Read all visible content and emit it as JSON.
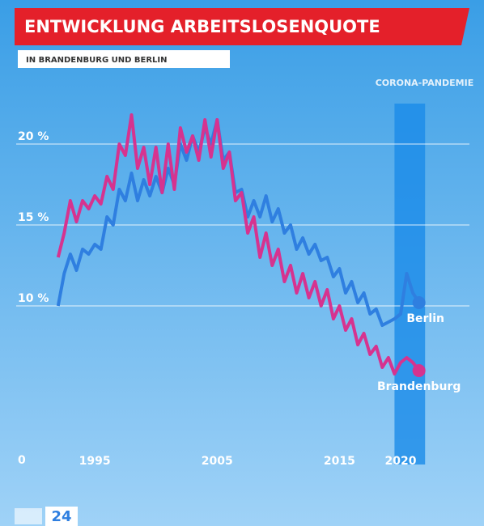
{
  "chart_data": {
    "type": "line",
    "title": "ENTWICKLUNG ARBEITSLOSENQUOTE",
    "subtitle": "IN BRANDENBURG UND BERLIN",
    "annotation": {
      "text": "CORONA-PANDEMIE",
      "x": [
        2019.5,
        2022
      ]
    },
    "logo": "24",
    "x": [
      1992,
      1992.5,
      1993,
      1993.5,
      1994,
      1994.5,
      1995,
      1995.5,
      1996,
      1996.5,
      1997,
      1997.5,
      1998,
      1998.5,
      1999,
      1999.5,
      2000,
      2000.5,
      2001,
      2001.5,
      2002,
      2002.5,
      2003,
      2003.5,
      2004,
      2004.5,
      2005,
      2005.5,
      2006,
      2006.5,
      2007,
      2007.5,
      2008,
      2008.5,
      2009,
      2009.5,
      2010,
      2010.5,
      2011,
      2011.5,
      2012,
      2012.5,
      2013,
      2013.5,
      2014,
      2014.5,
      2015,
      2015.5,
      2016,
      2016.5,
      2017,
      2017.5,
      2018,
      2018.5,
      2019,
      2019.5,
      2020,
      2020.5,
      2021,
      2021.5
    ],
    "series": [
      {
        "name": "Berlin",
        "color": "#2f7fe0",
        "values": [
          10.0,
          12.0,
          13.2,
          12.2,
          13.5,
          13.2,
          13.8,
          13.5,
          15.5,
          15.0,
          17.2,
          16.5,
          18.2,
          16.5,
          17.8,
          16.8,
          18.0,
          17.0,
          18.5,
          17.5,
          20.0,
          19.0,
          20.5,
          19.5,
          21.0,
          20.0,
          21.5,
          19.0,
          19.5,
          17.0,
          17.2,
          15.5,
          16.5,
          15.5,
          16.8,
          15.2,
          16.0,
          14.5,
          15.0,
          13.5,
          14.2,
          13.2,
          13.8,
          12.8,
          13.0,
          11.8,
          12.3,
          10.8,
          11.5,
          10.2,
          10.8,
          9.5,
          9.8,
          8.8,
          9.0,
          9.2,
          9.5,
          12.0,
          10.8,
          10.2
        ]
      },
      {
        "name": "Brandenburg",
        "color": "#d6338f",
        "values": [
          13.0,
          14.5,
          16.5,
          15.2,
          16.5,
          16.0,
          16.8,
          16.3,
          18.0,
          17.2,
          20.0,
          19.3,
          21.8,
          18.5,
          19.8,
          17.5,
          19.8,
          17.0,
          20.0,
          17.2,
          21.0,
          19.5,
          20.5,
          19.0,
          21.5,
          19.2,
          21.5,
          18.5,
          19.5,
          16.5,
          17.0,
          14.5,
          15.5,
          13.0,
          14.5,
          12.5,
          13.5,
          11.5,
          12.5,
          10.8,
          12.0,
          10.5,
          11.5,
          10.0,
          11.0,
          9.2,
          10.0,
          8.5,
          9.2,
          7.6,
          8.3,
          7.0,
          7.5,
          6.2,
          6.8,
          5.8,
          6.5,
          6.8,
          6.5,
          6.0
        ]
      }
    ],
    "xlim": [
      1989.5,
      2024.5
    ],
    "xticks": [
      1995,
      2005,
      2015,
      2020
    ],
    "ylim": [
      0,
      22.5
    ],
    "yticks": [
      0,
      {
        "value": 10,
        "label": "10 %"
      },
      {
        "value": 15,
        "label": "15 %"
      },
      {
        "value": 20,
        "label": "20 %"
      }
    ],
    "grid": true
  }
}
